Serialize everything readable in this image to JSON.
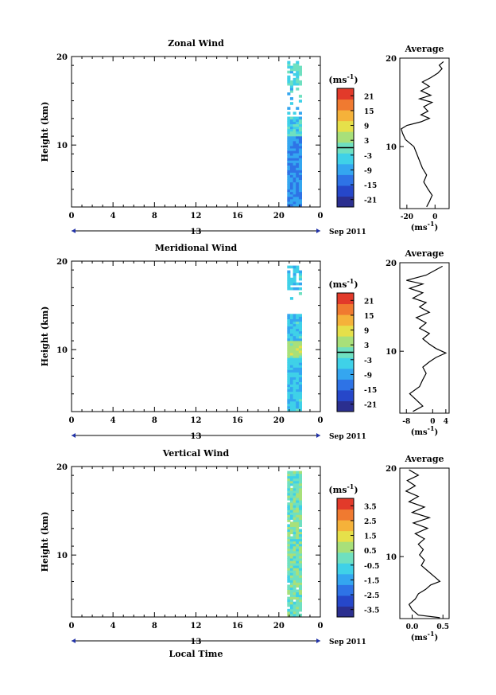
{
  "chart_data": [
    {
      "type": "heatmap",
      "title": "Zonal Wind",
      "ylabel": "Height (km)",
      "ylim": [
        3,
        20
      ],
      "y_ticks": [
        "20",
        "10"
      ],
      "x_ticks": [
        "0",
        "4",
        "8",
        "12",
        "16",
        "20",
        "0"
      ],
      "xlim": [
        0,
        24
      ],
      "date_label": "13",
      "month_label": "Sep 2011",
      "colorbar": {
        "unit": "(ms",
        "unit_sup": "-1",
        "unit_close": ")",
        "ticks": [
          "21",
          "15",
          "9",
          "3",
          "-3",
          "-9",
          "-15",
          "-21"
        ],
        "range": [
          -24,
          24
        ],
        "zero_line": 0
      },
      "data_time_range": [
        20.8,
        22.2
      ],
      "profile": {
        "title": "Average",
        "x_ticks": [
          "-20",
          "0"
        ],
        "xlim": [
          -25,
          10
        ],
        "xlabel": "(ms",
        "xlabel_sup": "-1",
        "xlabel_close": ")",
        "points": [
          [
            -6,
            3.2
          ],
          [
            -4,
            3.8
          ],
          [
            -2,
            4.5
          ],
          [
            -5,
            5.2
          ],
          [
            -8,
            6
          ],
          [
            -6,
            6.8
          ],
          [
            -9,
            7.6
          ],
          [
            -11,
            8.4
          ],
          [
            -13,
            9.2
          ],
          [
            -15,
            10
          ],
          [
            -21,
            10.8
          ],
          [
            -23,
            11.5
          ],
          [
            -24,
            12
          ],
          [
            -20,
            12.4
          ],
          [
            -10,
            12.8
          ],
          [
            -4,
            13.2
          ],
          [
            -10,
            13.6
          ],
          [
            -5,
            14
          ],
          [
            -8,
            14.5
          ],
          [
            -2,
            15
          ],
          [
            -11,
            15.4
          ],
          [
            -3,
            15.8
          ],
          [
            -10,
            16.3
          ],
          [
            -4,
            16.8
          ],
          [
            -9,
            17.3
          ],
          [
            -3,
            17.8
          ],
          [
            2,
            18.3
          ],
          [
            5,
            18.8
          ],
          [
            3,
            19.2
          ],
          [
            6,
            19.6
          ]
        ]
      }
    },
    {
      "type": "heatmap",
      "title": "Meridional Wind",
      "ylabel": "Height (km)",
      "ylim": [
        3,
        20
      ],
      "y_ticks": [
        "20",
        "10"
      ],
      "x_ticks": [
        "0",
        "4",
        "8",
        "12",
        "16",
        "20",
        "0"
      ],
      "xlim": [
        0,
        24
      ],
      "date_label": "13",
      "month_label": "Sep 2011",
      "colorbar": {
        "unit": "(ms",
        "unit_sup": "-1",
        "unit_close": ")",
        "ticks": [
          "21",
          "15",
          "9",
          "3",
          "-3",
          "-9",
          "-15",
          "-21"
        ],
        "range": [
          -24,
          24
        ],
        "zero_line": 0
      },
      "data_time_range": [
        20.8,
        22.2
      ],
      "profile": {
        "title": "Average",
        "x_ticks": [
          "-8",
          "0",
          "4"
        ],
        "xlim": [
          -10,
          5
        ],
        "xlabel": "(ms",
        "xlabel_sup": "-1",
        "xlabel_close": ")",
        "points": [
          [
            -6,
            3.2
          ],
          [
            -3,
            3.8
          ],
          [
            -5,
            4.5
          ],
          [
            -7,
            5.2
          ],
          [
            -4,
            6
          ],
          [
            -3,
            6.8
          ],
          [
            -2,
            7.5
          ],
          [
            -3,
            8.2
          ],
          [
            -1,
            8.8
          ],
          [
            1,
            9.3
          ],
          [
            4,
            9.8
          ],
          [
            1,
            10.3
          ],
          [
            -1,
            10.8
          ],
          [
            -3,
            11.4
          ],
          [
            -1,
            12
          ],
          [
            -4,
            12.6
          ],
          [
            -2,
            13.2
          ],
          [
            -5,
            13.8
          ],
          [
            -1,
            14.4
          ],
          [
            -4,
            15
          ],
          [
            -2,
            15.5
          ],
          [
            -6,
            16
          ],
          [
            -3,
            16.6
          ],
          [
            -7,
            17.1
          ],
          [
            -3,
            17.6
          ],
          [
            -8,
            18
          ],
          [
            -2,
            18.6
          ],
          [
            1,
            19.2
          ],
          [
            3,
            19.6
          ]
        ]
      }
    },
    {
      "type": "heatmap",
      "title": "Vertical Wind",
      "ylabel": "Height (km)",
      "xlabel": "Local Time",
      "ylim": [
        3,
        20
      ],
      "y_ticks": [
        "20",
        "10"
      ],
      "x_ticks": [
        "0",
        "4",
        "8",
        "12",
        "16",
        "20",
        "0"
      ],
      "xlim": [
        0,
        24
      ],
      "date_label": "13",
      "month_label": "Sep 2011",
      "colorbar": {
        "unit": "(ms",
        "unit_sup": "-1",
        "unit_close": ")",
        "ticks": [
          "3.5",
          "2.5",
          "1.5",
          "0.5",
          "-0.5",
          "-1.5",
          "-2.5",
          "-3.5"
        ],
        "range": [
          -4,
          4
        ]
      },
      "data_time_range": [
        20.8,
        22.2
      ],
      "profile": {
        "title": "Average",
        "x_ticks": [
          "0.0",
          "0.5"
        ],
        "xlim": [
          -0.2,
          0.6
        ],
        "xlabel": "(ms",
        "xlabel_sup": "-1",
        "xlabel_close": ")",
        "points": [
          [
            0.45,
            3.1
          ],
          [
            0.1,
            3.4
          ],
          [
            0.0,
            4.0
          ],
          [
            -0.05,
            4.6
          ],
          [
            0.05,
            5.2
          ],
          [
            0.1,
            5.8
          ],
          [
            0.22,
            6.3
          ],
          [
            0.3,
            6.8
          ],
          [
            0.45,
            7.2
          ],
          [
            0.35,
            7.8
          ],
          [
            0.25,
            8.4
          ],
          [
            0.15,
            9
          ],
          [
            0.2,
            9.6
          ],
          [
            0.12,
            10.2
          ],
          [
            0.18,
            10.8
          ],
          [
            0.1,
            11.4
          ],
          [
            0.2,
            12
          ],
          [
            0.05,
            12.6
          ],
          [
            0.25,
            13.2
          ],
          [
            0.02,
            13.8
          ],
          [
            0.28,
            14.4
          ],
          [
            0.0,
            15
          ],
          [
            0.2,
            15.6
          ],
          [
            -0.05,
            16.2
          ],
          [
            0.1,
            16.8
          ],
          [
            -0.1,
            17.4
          ],
          [
            0.05,
            18
          ],
          [
            -0.08,
            18.6
          ],
          [
            0.1,
            19.2
          ],
          [
            -0.05,
            19.8
          ]
        ]
      }
    }
  ],
  "colors": {
    "scale": [
      "#2b2f8f",
      "#2647c9",
      "#2e73e6",
      "#34a6f0",
      "#3fd1e8",
      "#6fe0c0",
      "#a8e07a",
      "#e6e04a",
      "#f5b23a",
      "#f07a30",
      "#e23a2a"
    ]
  }
}
